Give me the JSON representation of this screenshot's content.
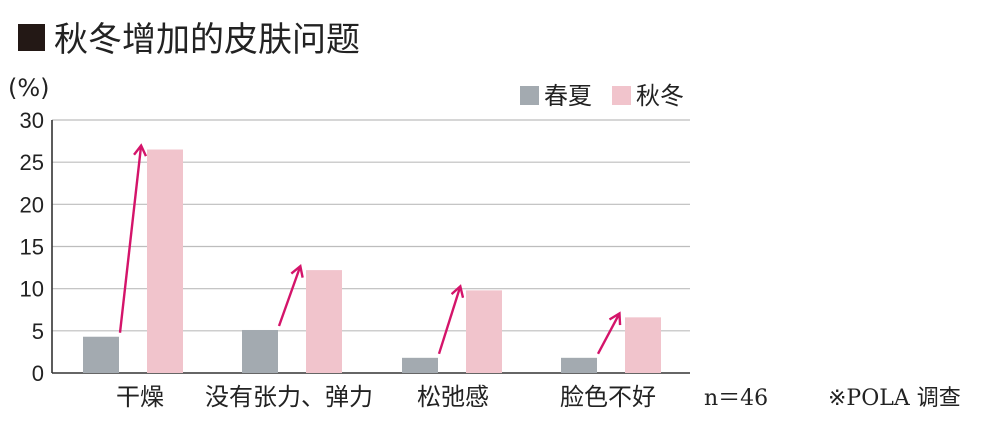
{
  "title": "秋冬增加的皮肤问题",
  "chart_data": {
    "type": "bar",
    "title": "秋冬增加的皮肤问题",
    "unit_label": "(%)",
    "categories": [
      "干燥",
      "没有张力、弹力",
      "松弛感",
      "脸色不好"
    ],
    "series": [
      {
        "name": "春夏",
        "color": "#a3aab0",
        "values": [
          4.3,
          5.1,
          1.8,
          1.8
        ]
      },
      {
        "name": "秋冬",
        "color": "#f1c4cc",
        "values": [
          26.5,
          12.2,
          9.8,
          6.6
        ]
      }
    ],
    "ylim": [
      0,
      30
    ],
    "yticks": [
      0,
      5,
      10,
      15,
      20,
      25,
      30
    ],
    "grid": true,
    "legend_position": "top-right",
    "arrow_color": "#d4146a"
  },
  "notes": {
    "sample_size": "n＝46",
    "source": "※POLA 调查"
  }
}
